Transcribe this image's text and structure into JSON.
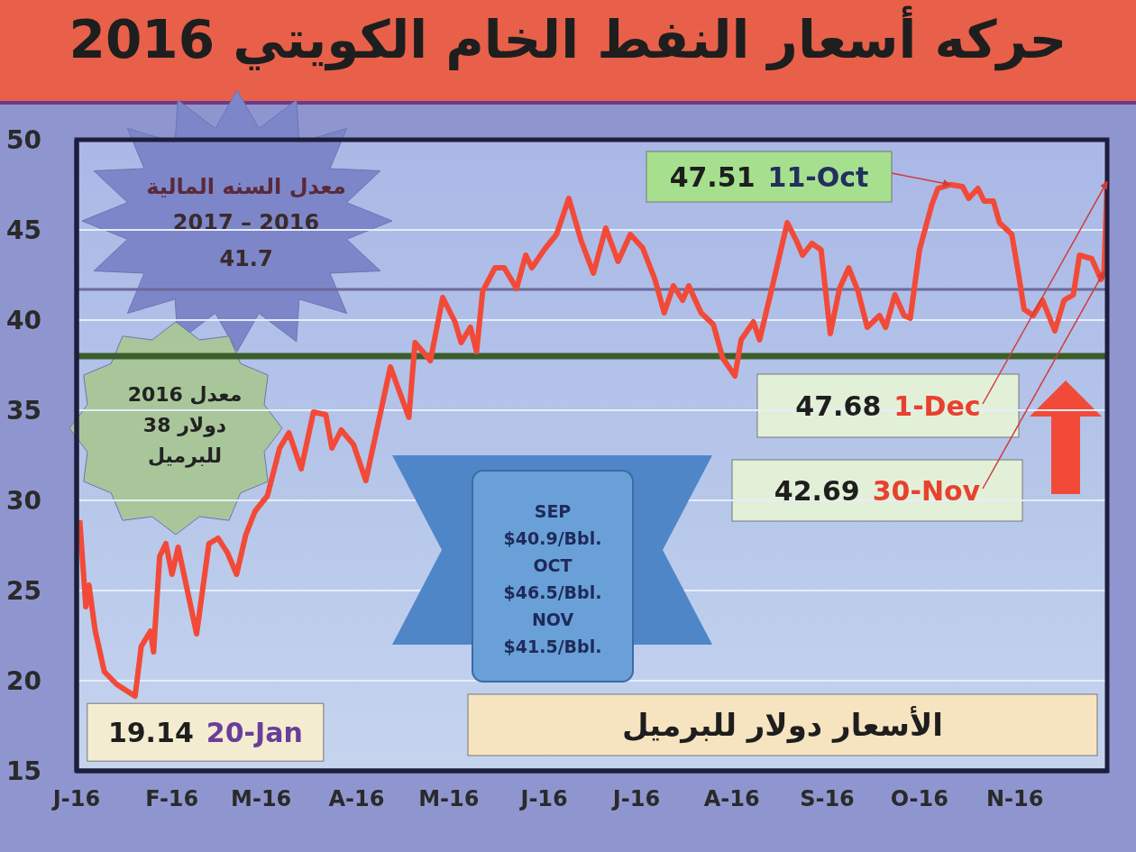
{
  "chart_data": {
    "type": "line",
    "title": "حركه أسعار النفط الخام الكويتي 2016",
    "x": [
      "2016-01-02",
      "2016-01-04",
      "2016-01-05",
      "2016-01-07",
      "2016-01-10",
      "2016-01-14",
      "2016-01-20",
      "2016-01-22",
      "2016-01-25",
      "2016-01-26",
      "2016-01-28",
      "2016-01-30",
      "2016-02-01",
      "2016-02-03",
      "2016-02-09",
      "2016-02-13",
      "2016-02-16",
      "2016-02-19",
      "2016-02-22",
      "2016-02-25",
      "2016-02-28",
      "2016-03-03",
      "2016-03-07",
      "2016-03-10",
      "2016-03-14",
      "2016-03-18",
      "2016-03-22",
      "2016-03-24",
      "2016-03-27",
      "2016-03-31",
      "2016-04-04",
      "2016-04-12",
      "2016-04-18",
      "2016-04-20",
      "2016-04-25",
      "2016-04-29",
      "2016-05-03",
      "2016-05-05",
      "2016-05-08",
      "2016-05-10",
      "2016-05-12",
      "2016-05-16",
      "2016-05-19",
      "2016-05-23",
      "2016-05-26",
      "2016-05-28",
      "2016-06-01",
      "2016-06-05",
      "2016-06-09",
      "2016-06-13",
      "2016-06-17",
      "2016-06-21",
      "2016-06-25",
      "2016-06-29",
      "2016-07-03",
      "2016-07-07",
      "2016-07-10",
      "2016-07-13",
      "2016-07-16",
      "2016-07-18",
      "2016-07-22",
      "2016-07-26",
      "2016-07-29",
      "2016-07-31",
      "2016-08-02",
      "2016-08-04",
      "2016-08-08",
      "2016-08-10",
      "2016-08-14",
      "2016-08-19",
      "2016-08-22",
      "2016-08-24",
      "2016-08-27",
      "2016-08-30",
      "2016-09-02",
      "2016-09-05",
      "2016-09-08",
      "2016-09-11",
      "2016-09-14",
      "2016-09-18",
      "2016-09-20",
      "2016-09-23",
      "2016-09-26",
      "2016-09-28",
      "2016-10-01",
      "2016-10-05",
      "2016-10-07",
      "2016-10-11",
      "2016-10-15",
      "2016-10-17",
      "2016-10-20",
      "2016-10-22",
      "2016-10-25",
      "2016-10-27",
      "2016-10-31",
      "2016-11-02",
      "2016-11-04",
      "2016-11-07",
      "2016-11-10",
      "2016-11-14",
      "2016-11-17",
      "2016-11-20",
      "2016-11-22",
      "2016-11-26",
      "2016-11-29",
      "2016-11-30",
      "2016-12-01"
    ],
    "values": [
      28.9,
      24.1,
      25.3,
      22.8,
      20.5,
      19.8,
      19.14,
      21.9,
      22.75,
      21.6,
      26.9,
      27.6,
      25.9,
      27.4,
      22.6,
      27.6,
      27.9,
      27.1,
      25.9,
      28.1,
      29.4,
      30.25,
      32.9,
      33.75,
      31.75,
      34.9,
      34.75,
      32.9,
      33.9,
      33.1,
      31.1,
      37.4,
      34.6,
      38.75,
      37.75,
      41.25,
      39.9,
      38.75,
      39.6,
      38.25,
      41.6,
      42.9,
      42.9,
      41.75,
      43.6,
      42.9,
      43.9,
      44.75,
      46.75,
      44.4,
      42.6,
      45.1,
      43.25,
      44.75,
      44.0,
      42.25,
      40.4,
      41.9,
      41.1,
      41.9,
      40.4,
      39.75,
      37.9,
      37.4,
      36.9,
      38.9,
      39.9,
      38.9,
      41.75,
      45.4,
      44.4,
      43.6,
      44.25,
      43.9,
      39.25,
      41.75,
      42.9,
      41.6,
      39.6,
      40.25,
      39.6,
      41.4,
      40.25,
      40.1,
      43.9,
      46.4,
      47.3,
      47.51,
      47.4,
      46.75,
      47.3,
      46.6,
      46.6,
      45.4,
      44.75,
      42.75,
      40.6,
      40.25,
      41.1,
      39.4,
      41.1,
      41.4,
      43.6,
      43.4,
      42.25,
      42.69,
      47.68
    ],
    "color": "#f24a38",
    "xlim": [
      "2016-01-01",
      "2016-12-01"
    ],
    "xticks": [
      {
        "value": "2016-01-01",
        "label": "J-16"
      },
      {
        "value": "2016-02-01",
        "label": "F-16"
      },
      {
        "value": "2016-03-01",
        "label": "M-16"
      },
      {
        "value": "2016-04-01",
        "label": "A-16"
      },
      {
        "value": "2016-05-01",
        "label": "M-16"
      },
      {
        "value": "2016-06-01",
        "label": "J-16"
      },
      {
        "value": "2016-07-01",
        "label": "J-16"
      },
      {
        "value": "2016-08-01",
        "label": "A-16"
      },
      {
        "value": "2016-09-01",
        "label": "S-16"
      },
      {
        "value": "2016-10-01",
        "label": "O-16"
      },
      {
        "value": "2016-11-01",
        "label": "N-16"
      }
    ],
    "ylim": [
      15,
      50
    ],
    "yticks": [
      15,
      20,
      25,
      30,
      35,
      40,
      45,
      50
    ],
    "grid": "y",
    "ref_lines": [
      {
        "axis": "y",
        "value": 41.7,
        "label": "معدل السنه المالية\n2017 – 2016\n41.7",
        "color": "#6b6a9c"
      },
      {
        "axis": "y",
        "value": 38,
        "label": "معدل 2016\nدولار 38\nللبرميل",
        "color": "#3b5e2b"
      }
    ],
    "annotations": [
      {
        "text": "19.14 20-Jan",
        "x": "2016-01-20",
        "y": 19.14
      },
      {
        "text": "47.51 11-Oct",
        "x": "2016-10-11",
        "y": 47.51
      },
      {
        "text": "47.68 1-Dec",
        "x": "2016-12-01",
        "y": 47.68
      },
      {
        "text": "42.69 30-Nov",
        "x": "2016-11-30",
        "y": 42.69
      },
      "SEP\n$40.9/Bbl.\nOCT\n$46.5/Bbl.\nNOV\n$41.5/Bbl.",
      "الأسعار دولار للبرميل"
    ]
  }
}
